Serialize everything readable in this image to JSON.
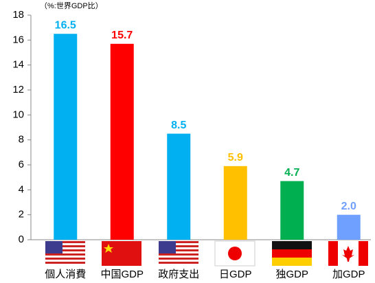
{
  "chart_data": {
    "type": "bar",
    "subtitle": "（%:世界GDP比）",
    "categories": [
      "個人消費",
      "中国GDP",
      "政府支出",
      "日GDP",
      "独GDP",
      "加GDP"
    ],
    "values": [
      16.5,
      15.7,
      8.5,
      5.9,
      4.7,
      2.0
    ],
    "value_labels": [
      "16.5",
      "15.7",
      "8.5",
      "5.9",
      "4.7",
      "2.0"
    ],
    "colors": [
      "#00B0F0",
      "#FF0000",
      "#00B0F0",
      "#FFC000",
      "#00B050",
      "#6FA0FF"
    ],
    "ylim": [
      0,
      18
    ],
    "yticks": [
      0,
      2,
      4,
      6,
      8,
      10,
      12,
      14,
      16,
      18
    ],
    "grid": false
  }
}
